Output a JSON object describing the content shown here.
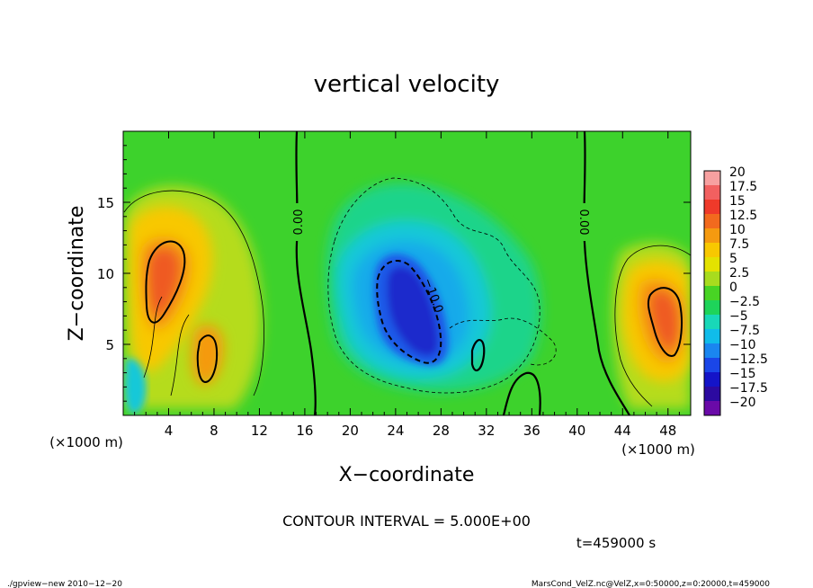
{
  "chart_data": {
    "type": "heatmap",
    "title": "vertical velocity",
    "xlabel": "X−coordinate",
    "ylabel": "Z−coordinate",
    "x_unit": "(×1000 m)",
    "y_unit": "(×1000 m)",
    "xlim": [
      0,
      50
    ],
    "ylim": [
      0,
      20
    ],
    "x_ticks": [
      {
        "value": 4,
        "label": "4"
      },
      {
        "value": 8,
        "label": "8"
      },
      {
        "value": 12,
        "label": "12"
      },
      {
        "value": 16,
        "label": "16"
      },
      {
        "value": 20,
        "label": "20"
      },
      {
        "value": 24,
        "label": "24"
      },
      {
        "value": 28,
        "label": "28"
      },
      {
        "value": 32,
        "label": "32"
      },
      {
        "value": 36,
        "label": "36"
      },
      {
        "value": 40,
        "label": "40"
      },
      {
        "value": 44,
        "label": "44"
      },
      {
        "value": 48,
        "label": "48"
      }
    ],
    "y_ticks": [
      {
        "value": 5,
        "label": "5"
      },
      {
        "value": 10,
        "label": "10"
      },
      {
        "value": 15,
        "label": "15"
      }
    ],
    "colorbar": {
      "labels": [
        "20",
        "17.5",
        "15",
        "12.5",
        "10",
        "7.5",
        "5",
        "2.5",
        "0",
        "−2.5",
        "−5",
        "−7.5",
        "−10",
        "−12.5",
        "−15",
        "−17.5",
        "−20"
      ],
      "colors": [
        "#f7a0a0",
        "#f26060",
        "#ef3a2a",
        "#f26a1e",
        "#f59a10",
        "#f8c800",
        "#e4e200",
        "#a8dc1e",
        "#48d424",
        "#1ed45a",
        "#18d8b8",
        "#10bcea",
        "#1a86f0",
        "#1a46e8",
        "#1414c8",
        "#2c0aa0",
        "#6a0aa8"
      ]
    },
    "contour_labels": [
      {
        "text": "0.00",
        "x": 15.5,
        "z": 13.5
      },
      {
        "text": "−10.0",
        "x": 26.0,
        "z": 8.1
      },
      {
        "text": "0.00",
        "x": 40.6,
        "z": 13.5
      }
    ],
    "features": [
      {
        "kind": "updraft",
        "x": 4.0,
        "z": 10.0,
        "peak": 12.5
      },
      {
        "kind": "updraft",
        "x": 47.5,
        "z": 7.5,
        "peak": 12.5
      },
      {
        "kind": "updraft",
        "x": 7.5,
        "z": 4.5,
        "peak": 11
      },
      {
        "kind": "downdraft",
        "x": 25.5,
        "z": 7.5,
        "peak": -14
      }
    ],
    "annotation": "CONTOUR INTERVAL = 5.000E+00",
    "time_label": "t=459000 s"
  },
  "footer": {
    "left": "./gpview−new  2010−12−20",
    "right": "MarsCond_VelZ.nc@VelZ,x=0:50000,z=0:20000,t=459000"
  }
}
